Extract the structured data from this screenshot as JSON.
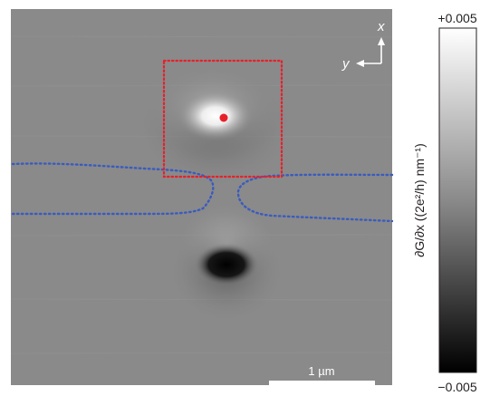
{
  "colorbar": {
    "max_label": "+0.005",
    "min_label": "−0.005",
    "axis_label": "∂G/∂x ((2e²/h) nm⁻¹)",
    "gradient_top": "#ffffff",
    "gradient_bottom": "#000000"
  },
  "scan_image": {
    "background_color": "#8a8a8a",
    "axis_x_label": "x",
    "axis_y_label": "y",
    "scale_bar_label": "1 µm",
    "marker_color": "#e8202a",
    "box_color": "#e8202a",
    "gate_outline_color": "#3a5bbf"
  }
}
